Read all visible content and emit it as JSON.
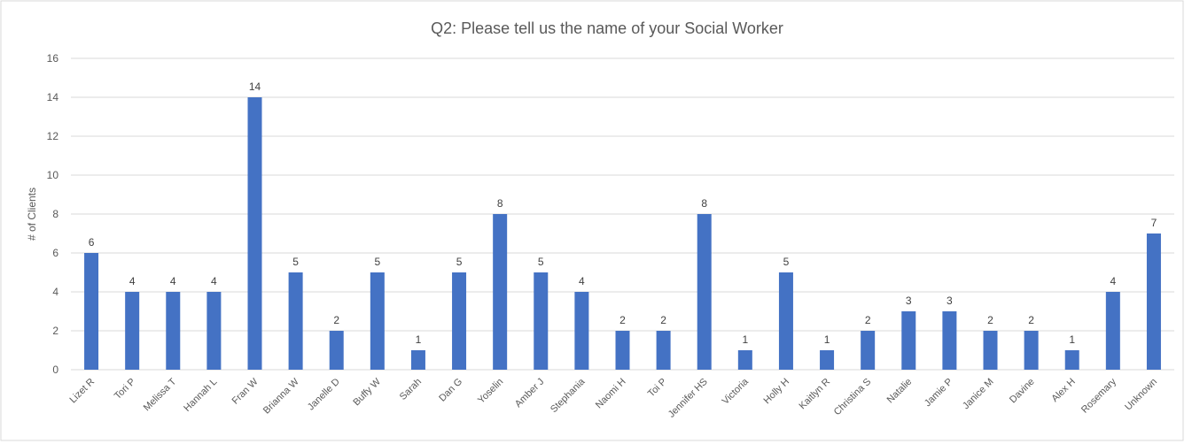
{
  "chart_data": {
    "type": "bar",
    "title": "Q2: Please tell us the name of your Social Worker",
    "y_label": "# of Clients",
    "categories": [
      "Lizet R",
      "Tori P",
      "Melissa T",
      "Hannah L",
      "Fran W",
      "Brianna W",
      "Janelle D",
      "Buffy W",
      "Sarah",
      "Dan G",
      "Yoselin",
      "Amber J",
      "Stephania",
      "Naomi H",
      "Toi P",
      "Jennifer HS",
      "Victoria",
      "Holly H",
      "Kaitlyn R",
      "Christina S",
      "Natalie",
      "Jamie P",
      "Janice M",
      "Davine",
      "Alex H",
      "Rosemary",
      "Unknown"
    ],
    "values": [
      6,
      4,
      4,
      4,
      14,
      5,
      2,
      5,
      1,
      5,
      8,
      5,
      4,
      2,
      2,
      8,
      1,
      5,
      1,
      2,
      3,
      3,
      2,
      2,
      1,
      4,
      7
    ],
    "color": "#4472c4",
    "ylim": [
      0,
      16
    ],
    "yticks": [
      0,
      2,
      4,
      6,
      8,
      10,
      12,
      14,
      16
    ],
    "grid": true,
    "data_labels": true
  }
}
